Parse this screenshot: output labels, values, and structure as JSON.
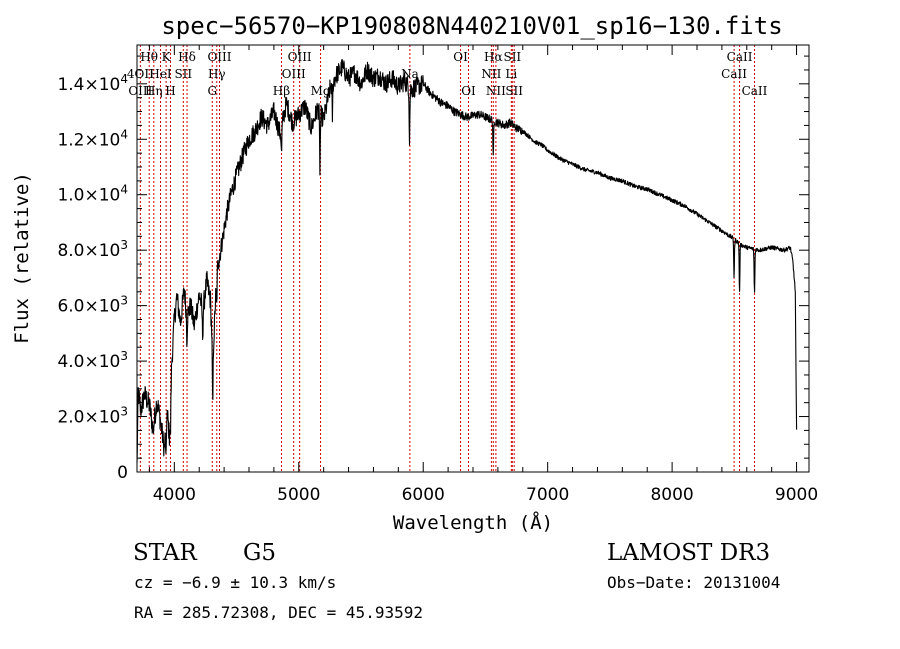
{
  "chart_data": {
    "type": "line",
    "title": "spec−56570−KP190808N440210V01_sp16−130.fits",
    "xlabel": "Wavelength (Å)",
    "ylabel": "Flux (relative)",
    "xlim": [
      3700,
      9100
    ],
    "ylim": [
      0,
      15400
    ],
    "x_ticks": [
      4000,
      5000,
      6000,
      7000,
      8000,
      9000
    ],
    "x_tick_labels": [
      "4000",
      "5000",
      "6000",
      "7000",
      "8000",
      "9000"
    ],
    "y_ticks": [
      0,
      2000,
      4000,
      6000,
      8000,
      10000,
      12000,
      14000
    ],
    "y_tick_labels": [
      {
        "mant": "0",
        "exp": ""
      },
      {
        "mant": "2.0×10",
        "exp": "3"
      },
      {
        "mant": "4.0×10",
        "exp": "3"
      },
      {
        "mant": "6.0×10",
        "exp": "3"
      },
      {
        "mant": "8.0×10",
        "exp": "3"
      },
      {
        "mant": "1.0×10",
        "exp": "4"
      },
      {
        "mant": "1.2×10",
        "exp": "4"
      },
      {
        "mant": "1.4×10",
        "exp": "4"
      }
    ],
    "grid": false,
    "line_color": "#000000",
    "marker_color": "#cc0000",
    "spectrum_anchors": [
      [
        3700,
        200
      ],
      [
        3710,
        2900
      ],
      [
        3730,
        2200
      ],
      [
        3760,
        2800
      ],
      [
        3800,
        2400
      ],
      [
        3830,
        1500
      ],
      [
        3860,
        2600
      ],
      [
        3890,
        1800
      ],
      [
        3920,
        800
      ],
      [
        3940,
        2300
      ],
      [
        3960,
        1300
      ],
      [
        3980,
        4000
      ],
      [
        4000,
        5500
      ],
      [
        4020,
        6300
      ],
      [
        4050,
        5400
      ],
      [
        4080,
        6600
      ],
      [
        4100,
        5600
      ],
      [
        4130,
        6000
      ],
      [
        4160,
        5300
      ],
      [
        4200,
        6400
      ],
      [
        4230,
        5800
      ],
      [
        4260,
        6900
      ],
      [
        4290,
        6200
      ],
      [
        4310,
        4000
      ],
      [
        4340,
        7200
      ],
      [
        4380,
        8200
      ],
      [
        4420,
        9300
      ],
      [
        4460,
        10100
      ],
      [
        4500,
        10700
      ],
      [
        4550,
        11400
      ],
      [
        4600,
        12000
      ],
      [
        4650,
        12300
      ],
      [
        4700,
        12800
      ],
      [
        4750,
        12500
      ],
      [
        4800,
        13000
      ],
      [
        4850,
        12200
      ],
      [
        4900,
        13300
      ],
      [
        4950,
        12600
      ],
      [
        5000,
        12900
      ],
      [
        5050,
        13200
      ],
      [
        5100,
        12400
      ],
      [
        5150,
        13100
      ],
      [
        5200,
        12700
      ],
      [
        5250,
        13800
      ],
      [
        5300,
        14300
      ],
      [
        5350,
        14600
      ],
      [
        5400,
        14200
      ],
      [
        5450,
        14400
      ],
      [
        5500,
        14000
      ],
      [
        5550,
        14500
      ],
      [
        5600,
        14200
      ],
      [
        5650,
        14300
      ],
      [
        5700,
        14000
      ],
      [
        5750,
        14200
      ],
      [
        5800,
        13900
      ],
      [
        5850,
        14100
      ],
      [
        5900,
        13800
      ],
      [
        5950,
        13900
      ],
      [
        6000,
        14000
      ],
      [
        6050,
        13700
      ],
      [
        6100,
        13500
      ],
      [
        6150,
        13300
      ],
      [
        6200,
        13200
      ],
      [
        6250,
        13000
      ],
      [
        6300,
        12900
      ],
      [
        6350,
        12800
      ],
      [
        6400,
        12850
      ],
      [
        6450,
        12900
      ],
      [
        6500,
        12800
      ],
      [
        6550,
        12700
      ],
      [
        6600,
        12600
      ],
      [
        6650,
        12500
      ],
      [
        6700,
        12600
      ],
      [
        6750,
        12400
      ],
      [
        6800,
        12300
      ],
      [
        6850,
        12100
      ],
      [
        6900,
        11900
      ],
      [
        6950,
        11800
      ],
      [
        7000,
        11600
      ],
      [
        7100,
        11300
      ],
      [
        7200,
        11100
      ],
      [
        7300,
        10900
      ],
      [
        7400,
        10800
      ],
      [
        7500,
        10600
      ],
      [
        7600,
        10500
      ],
      [
        7700,
        10300
      ],
      [
        7800,
        10200
      ],
      [
        7900,
        10000
      ],
      [
        8000,
        9800
      ],
      [
        8100,
        9600
      ],
      [
        8200,
        9300
      ],
      [
        8300,
        9000
      ],
      [
        8400,
        8700
      ],
      [
        8500,
        8400
      ],
      [
        8550,
        8200
      ],
      [
        8600,
        8100
      ],
      [
        8700,
        8000
      ],
      [
        8800,
        8100
      ],
      [
        8900,
        8000
      ],
      [
        8950,
        8100
      ],
      [
        8970,
        7600
      ],
      [
        8990,
        6500
      ],
      [
        9000,
        1500
      ]
    ],
    "absorption_dips": [
      [
        3934,
        1500
      ],
      [
        3969,
        1200
      ],
      [
        4101,
        800
      ],
      [
        4227,
        900
      ],
      [
        4308,
        1800
      ],
      [
        4340,
        1200
      ],
      [
        4861,
        1000
      ],
      [
        5170,
        2000
      ],
      [
        5270,
        1200
      ],
      [
        5890,
        1800
      ],
      [
        6563,
        1400
      ],
      [
        8498,
        1400
      ],
      [
        8542,
        1800
      ],
      [
        8662,
        1600
      ]
    ],
    "lines": [
      {
        "label": "Hθ",
        "wl": 3798,
        "row": 0
      },
      {
        "label": "4OII",
        "wl": 3727,
        "row": 1
      },
      {
        "label": "OIII",
        "wl": 3727,
        "row": 2
      },
      {
        "label": "Hη",
        "wl": 3835,
        "row": 2
      },
      {
        "label": "K",
        "wl": 3934,
        "row": 0
      },
      {
        "label": "HeI",
        "wl": 3889,
        "row": 1
      },
      {
        "label": "H",
        "wl": 3969,
        "row": 2
      },
      {
        "label": "SII",
        "wl": 4072,
        "row": 1
      },
      {
        "label": "Hδ",
        "wl": 4102,
        "row": 0
      },
      {
        "label": "OIII",
        "wl": 4363,
        "row": 0
      },
      {
        "label": "Hγ",
        "wl": 4341,
        "row": 1
      },
      {
        "label": "G",
        "wl": 4305,
        "row": 2
      },
      {
        "label": "Hβ",
        "wl": 4861,
        "row": 2
      },
      {
        "label": "OIII",
        "wl": 5007,
        "row": 0
      },
      {
        "label": "OIII",
        "wl": 4959,
        "row": 1
      },
      {
        "label": "Mg",
        "wl": 5175,
        "row": 2
      },
      {
        "label": "Na",
        "wl": 5893,
        "row": 1
      },
      {
        "label": "OI",
        "wl": 6300,
        "row": 0
      },
      {
        "label": "OI",
        "wl": 6364,
        "row": 2
      },
      {
        "label": "Hα",
        "wl": 6563,
        "row": 0
      },
      {
        "label": "NII",
        "wl": 6548,
        "row": 1
      },
      {
        "label": "NII",
        "wl": 6584,
        "row": 2
      },
      {
        "label": "SII",
        "wl": 6716,
        "row": 0
      },
      {
        "label": "Li",
        "wl": 6708,
        "row": 1
      },
      {
        "label": "SII",
        "wl": 6731,
        "row": 2
      },
      {
        "label": "CaII",
        "wl": 8542,
        "row": 0
      },
      {
        "label": "CaII",
        "wl": 8498,
        "row": 1
      },
      {
        "label": "CaII",
        "wl": 8662,
        "row": 2
      }
    ]
  },
  "info": {
    "object_class": "STAR",
    "subclass": "G5",
    "survey": "LAMOST DR3",
    "redshift": "cz = −6.9 ± 10.3 km/s",
    "obs_date": "Obs−Date: 20131004",
    "coords": "RA = 285.72308, DEC =  45.93592"
  }
}
